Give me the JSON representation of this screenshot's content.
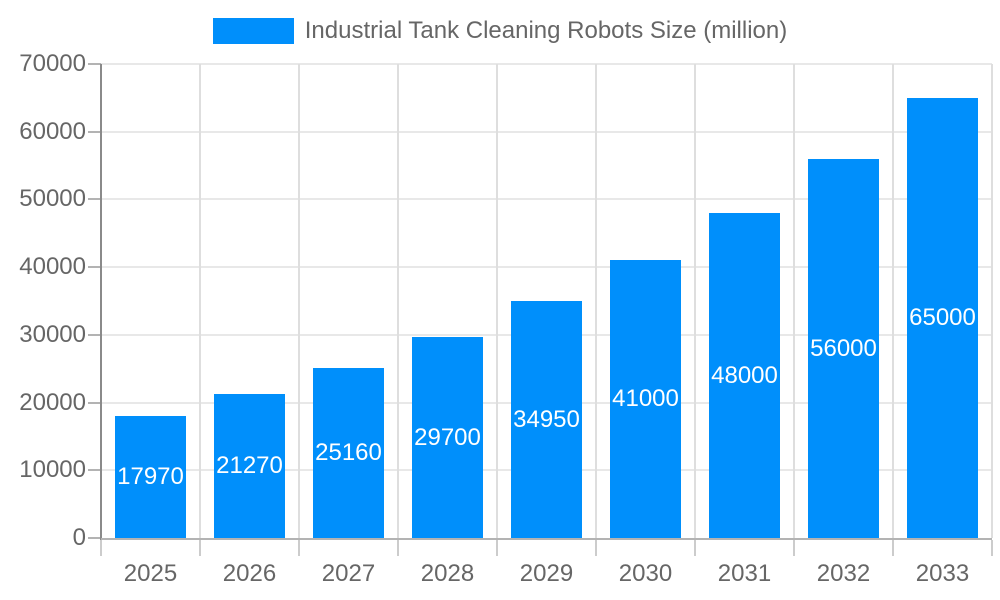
{
  "legend": {
    "label": "Industrial Tank Cleaning Robots Size (million)"
  },
  "chart_data": {
    "type": "bar",
    "title": "",
    "xlabel": "",
    "ylabel": "",
    "categories": [
      "2025",
      "2026",
      "2027",
      "2028",
      "2029",
      "2030",
      "2031",
      "2032",
      "2033"
    ],
    "values": [
      17970,
      21270,
      25160,
      29700,
      34950,
      41000,
      48000,
      56000,
      65000
    ],
    "value_labels": [
      "17970",
      "21270",
      "25160",
      "29700",
      "34950",
      "41000",
      "48000",
      "56000",
      "65000"
    ],
    "legend_entries": [
      "Industrial Tank Cleaning Robots Size (million)"
    ],
    "legend_position": "top-center",
    "ylim": [
      0,
      70000
    ],
    "ytick_step": 10000,
    "yticks": [
      0,
      10000,
      20000,
      30000,
      40000,
      50000,
      60000,
      70000
    ],
    "ytick_labels": [
      "0",
      "10000",
      "20000",
      "30000",
      "40000",
      "50000",
      "60000",
      "70000"
    ],
    "grid": true,
    "value_labels_position": "inside-center",
    "colors": {
      "bar": "#008FFB",
      "value_label": "#FFFFFF",
      "axis_text": "#666666",
      "gridline_h": "#E8E8E8",
      "gridline_v": "#DEDEDE",
      "y_axis_line": "#8A8A8A",
      "x_axis_line": "#B3B3B3",
      "y_tick": "#B3B3B3",
      "x_tick": "#CCCCCC",
      "background": "#FFFFFF"
    }
  }
}
